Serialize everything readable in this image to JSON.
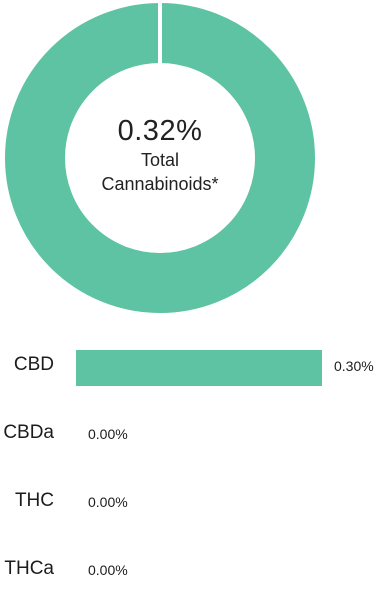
{
  "colors": {
    "accent": "#5ec3a2",
    "text": "#1c1c1c"
  },
  "donut": {
    "center_value": "0.32%",
    "center_line1": "Total",
    "center_line2": "Cannabinoids*"
  },
  "chart_data": [
    {
      "type": "pie",
      "slices": [
        {
          "value": 100
        }
      ]
    },
    {
      "type": "bar",
      "orientation": "horizontal",
      "categories": [
        "CBD",
        "CBDa",
        "THC",
        "THCa"
      ],
      "values": [
        0.3,
        0.0,
        0.0,
        0.0
      ],
      "value_labels": [
        "0.30%",
        "0.00%",
        "0.00%",
        "0.00%"
      ],
      "xlim": [
        0,
        0.3
      ]
    }
  ]
}
